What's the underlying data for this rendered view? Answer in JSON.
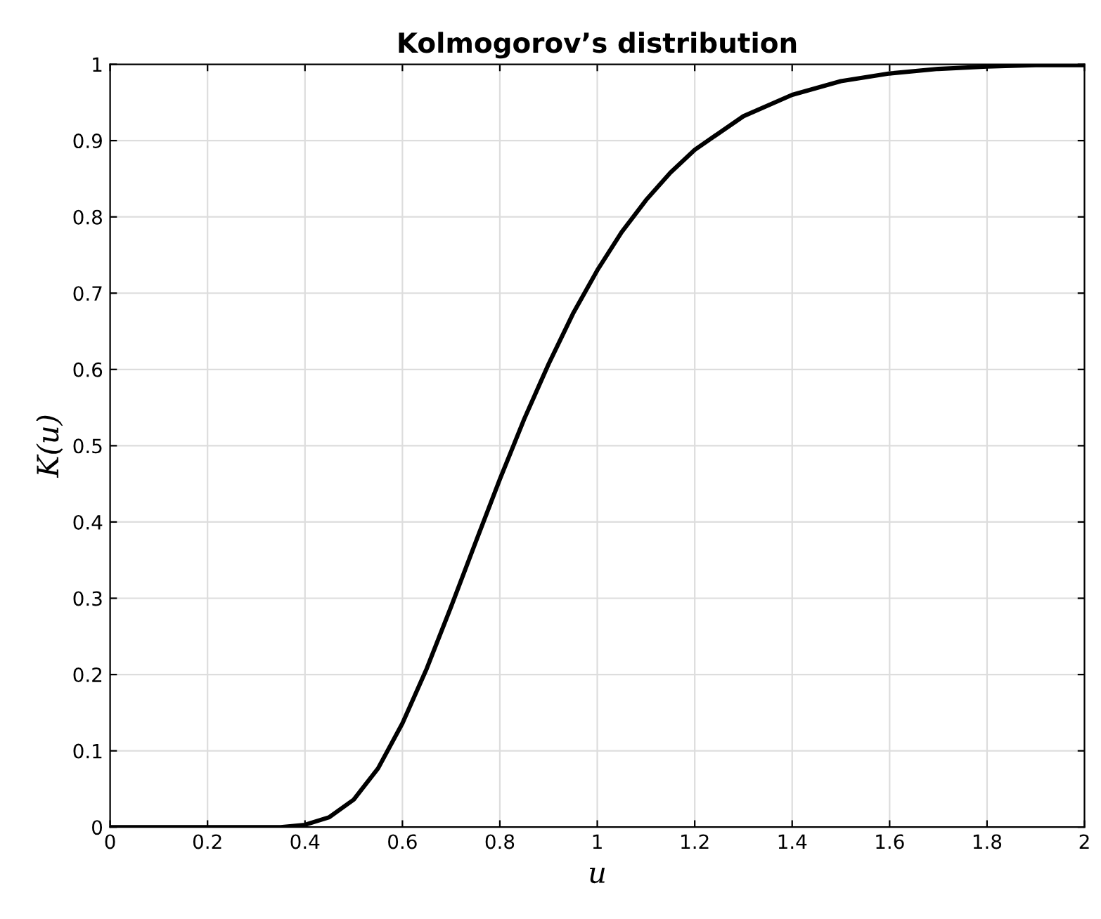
{
  "chart_data": {
    "type": "line",
    "title": "Kolmogorov’s distribution",
    "xlabel": "u",
    "ylabel": "K(u)",
    "x": [
      0,
      0.2,
      0.3,
      0.35,
      0.4,
      0.45,
      0.5,
      0.55,
      0.6,
      0.65,
      0.7,
      0.75,
      0.8,
      0.85,
      0.9,
      0.95,
      1.0,
      1.05,
      1.1,
      1.15,
      1.2,
      1.3,
      1.4,
      1.5,
      1.6,
      1.7,
      1.8,
      1.9,
      2.0
    ],
    "series": [
      {
        "color": "#000000",
        "values": [
          0,
          0,
          0.0,
          0.0,
          0.003,
          0.013,
          0.036,
          0.077,
          0.136,
          0.208,
          0.289,
          0.373,
          0.456,
          0.535,
          0.607,
          0.673,
          0.73,
          0.78,
          0.822,
          0.858,
          0.888,
          0.932,
          0.96,
          0.978,
          0.988,
          0.994,
          0.997,
          0.999,
          0.999
        ]
      }
    ],
    "xlim": [
      0,
      2
    ],
    "ylim": [
      0,
      1
    ],
    "xticks": [
      0,
      0.2,
      0.4,
      0.6,
      0.8,
      1,
      1.2,
      1.4,
      1.6,
      1.8,
      2
    ],
    "yticks": [
      0,
      0.1,
      0.2,
      0.3,
      0.4,
      0.5,
      0.6,
      0.7,
      0.8,
      0.9,
      1
    ],
    "grid": true,
    "legend": false,
    "marker": "none",
    "line_style": "solid"
  }
}
